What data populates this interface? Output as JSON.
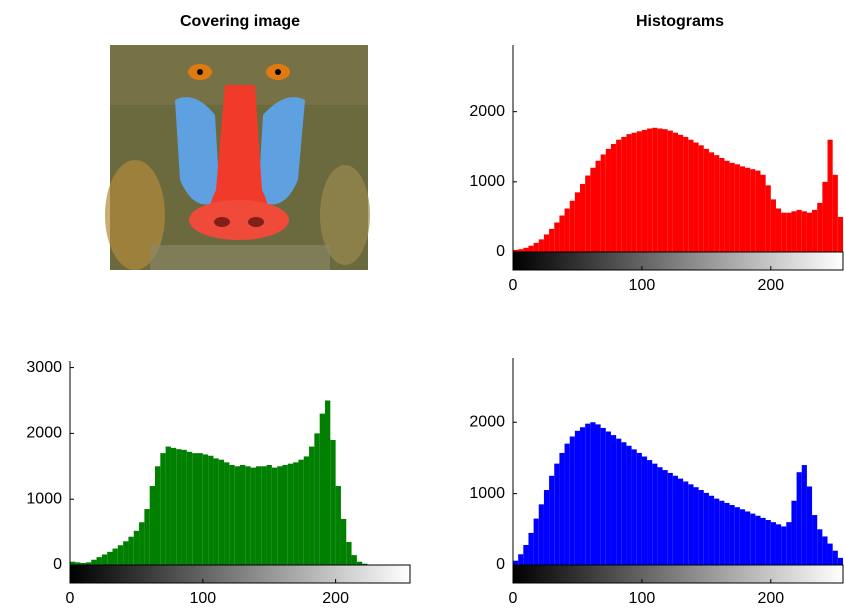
{
  "image": {
    "title": "Covering image"
  },
  "chart_data": [
    {
      "type": "histogram",
      "title": "Histograms",
      "color": "#ff0000",
      "bins": [
        0,
        4,
        8,
        12,
        16,
        20,
        24,
        28,
        32,
        36,
        40,
        44,
        48,
        52,
        56,
        60,
        64,
        68,
        72,
        76,
        80,
        84,
        88,
        92,
        96,
        100,
        104,
        108,
        112,
        116,
        120,
        124,
        128,
        132,
        136,
        140,
        144,
        148,
        152,
        156,
        160,
        164,
        168,
        172,
        176,
        180,
        184,
        188,
        192,
        196,
        200,
        204,
        208,
        212,
        216,
        220,
        224,
        228,
        232,
        236,
        240,
        244,
        248,
        252,
        256
      ],
      "values": [
        30,
        40,
        60,
        90,
        130,
        180,
        250,
        330,
        420,
        520,
        620,
        730,
        850,
        970,
        1090,
        1200,
        1300,
        1390,
        1470,
        1540,
        1600,
        1640,
        1680,
        1700,
        1720,
        1740,
        1760,
        1770,
        1760,
        1750,
        1730,
        1700,
        1670,
        1640,
        1600,
        1560,
        1520,
        1470,
        1420,
        1380,
        1340,
        1300,
        1270,
        1250,
        1220,
        1200,
        1180,
        1160,
        1100,
        950,
        750,
        620,
        560,
        560,
        580,
        600,
        580,
        560,
        600,
        700,
        1000,
        1600,
        1100,
        500
      ],
      "xlim": [
        0,
        256
      ],
      "ylim": [
        0,
        2950
      ],
      "xticks": [
        0,
        100,
        200
      ],
      "yticks": [
        0,
        1000,
        2000
      ]
    },
    {
      "type": "histogram",
      "color": "#007f00",
      "bins": [
        0,
        4,
        8,
        12,
        16,
        20,
        24,
        28,
        32,
        36,
        40,
        44,
        48,
        52,
        56,
        60,
        64,
        68,
        72,
        76,
        80,
        84,
        88,
        92,
        96,
        100,
        104,
        108,
        112,
        116,
        120,
        124,
        128,
        132,
        136,
        140,
        144,
        148,
        152,
        156,
        160,
        164,
        168,
        172,
        176,
        180,
        184,
        188,
        192,
        196,
        200,
        204,
        208,
        212,
        216,
        220,
        224,
        228,
        232,
        236,
        240,
        244,
        248,
        252,
        256
      ],
      "values": [
        50,
        40,
        30,
        40,
        80,
        120,
        160,
        200,
        250,
        300,
        360,
        430,
        520,
        650,
        850,
        1200,
        1500,
        1700,
        1800,
        1780,
        1760,
        1750,
        1720,
        1700,
        1700,
        1680,
        1660,
        1620,
        1600,
        1560,
        1520,
        1500,
        1520,
        1500,
        1480,
        1500,
        1500,
        1520,
        1480,
        1500,
        1520,
        1540,
        1560,
        1600,
        1650,
        1800,
        2000,
        2300,
        2500,
        1900,
        1200,
        700,
        350,
        150,
        50,
        20,
        0,
        0,
        0,
        0,
        0,
        0,
        0,
        0
      ],
      "xlim": [
        0,
        256
      ],
      "ylim": [
        0,
        3100
      ],
      "xticks": [
        0,
        100,
        200
      ],
      "yticks": [
        0,
        1000,
        2000,
        3000
      ]
    },
    {
      "type": "histogram",
      "color": "#0000ff",
      "bins": [
        0,
        4,
        8,
        12,
        16,
        20,
        24,
        28,
        32,
        36,
        40,
        44,
        48,
        52,
        56,
        60,
        64,
        68,
        72,
        76,
        80,
        84,
        88,
        92,
        96,
        100,
        104,
        108,
        112,
        116,
        120,
        124,
        128,
        132,
        136,
        140,
        144,
        148,
        152,
        156,
        160,
        164,
        168,
        172,
        176,
        180,
        184,
        188,
        192,
        196,
        200,
        204,
        208,
        212,
        216,
        220,
        224,
        228,
        232,
        236,
        240,
        244,
        248,
        252,
        256
      ],
      "values": [
        60,
        150,
        280,
        450,
        650,
        850,
        1050,
        1250,
        1420,
        1570,
        1700,
        1800,
        1880,
        1930,
        1980,
        2000,
        1970,
        1920,
        1870,
        1820,
        1770,
        1720,
        1670,
        1620,
        1570,
        1520,
        1470,
        1420,
        1370,
        1330,
        1290,
        1250,
        1210,
        1170,
        1130,
        1090,
        1050,
        1010,
        970,
        930,
        900,
        870,
        840,
        810,
        780,
        750,
        720,
        690,
        660,
        630,
        600,
        570,
        540,
        600,
        900,
        1300,
        1400,
        1100,
        700,
        500,
        400,
        300,
        200,
        100
      ],
      "xlim": [
        0,
        256
      ],
      "ylim": [
        0,
        2900
      ],
      "xticks": [
        0,
        100,
        200
      ],
      "yticks": [
        0,
        1000,
        2000
      ]
    }
  ]
}
